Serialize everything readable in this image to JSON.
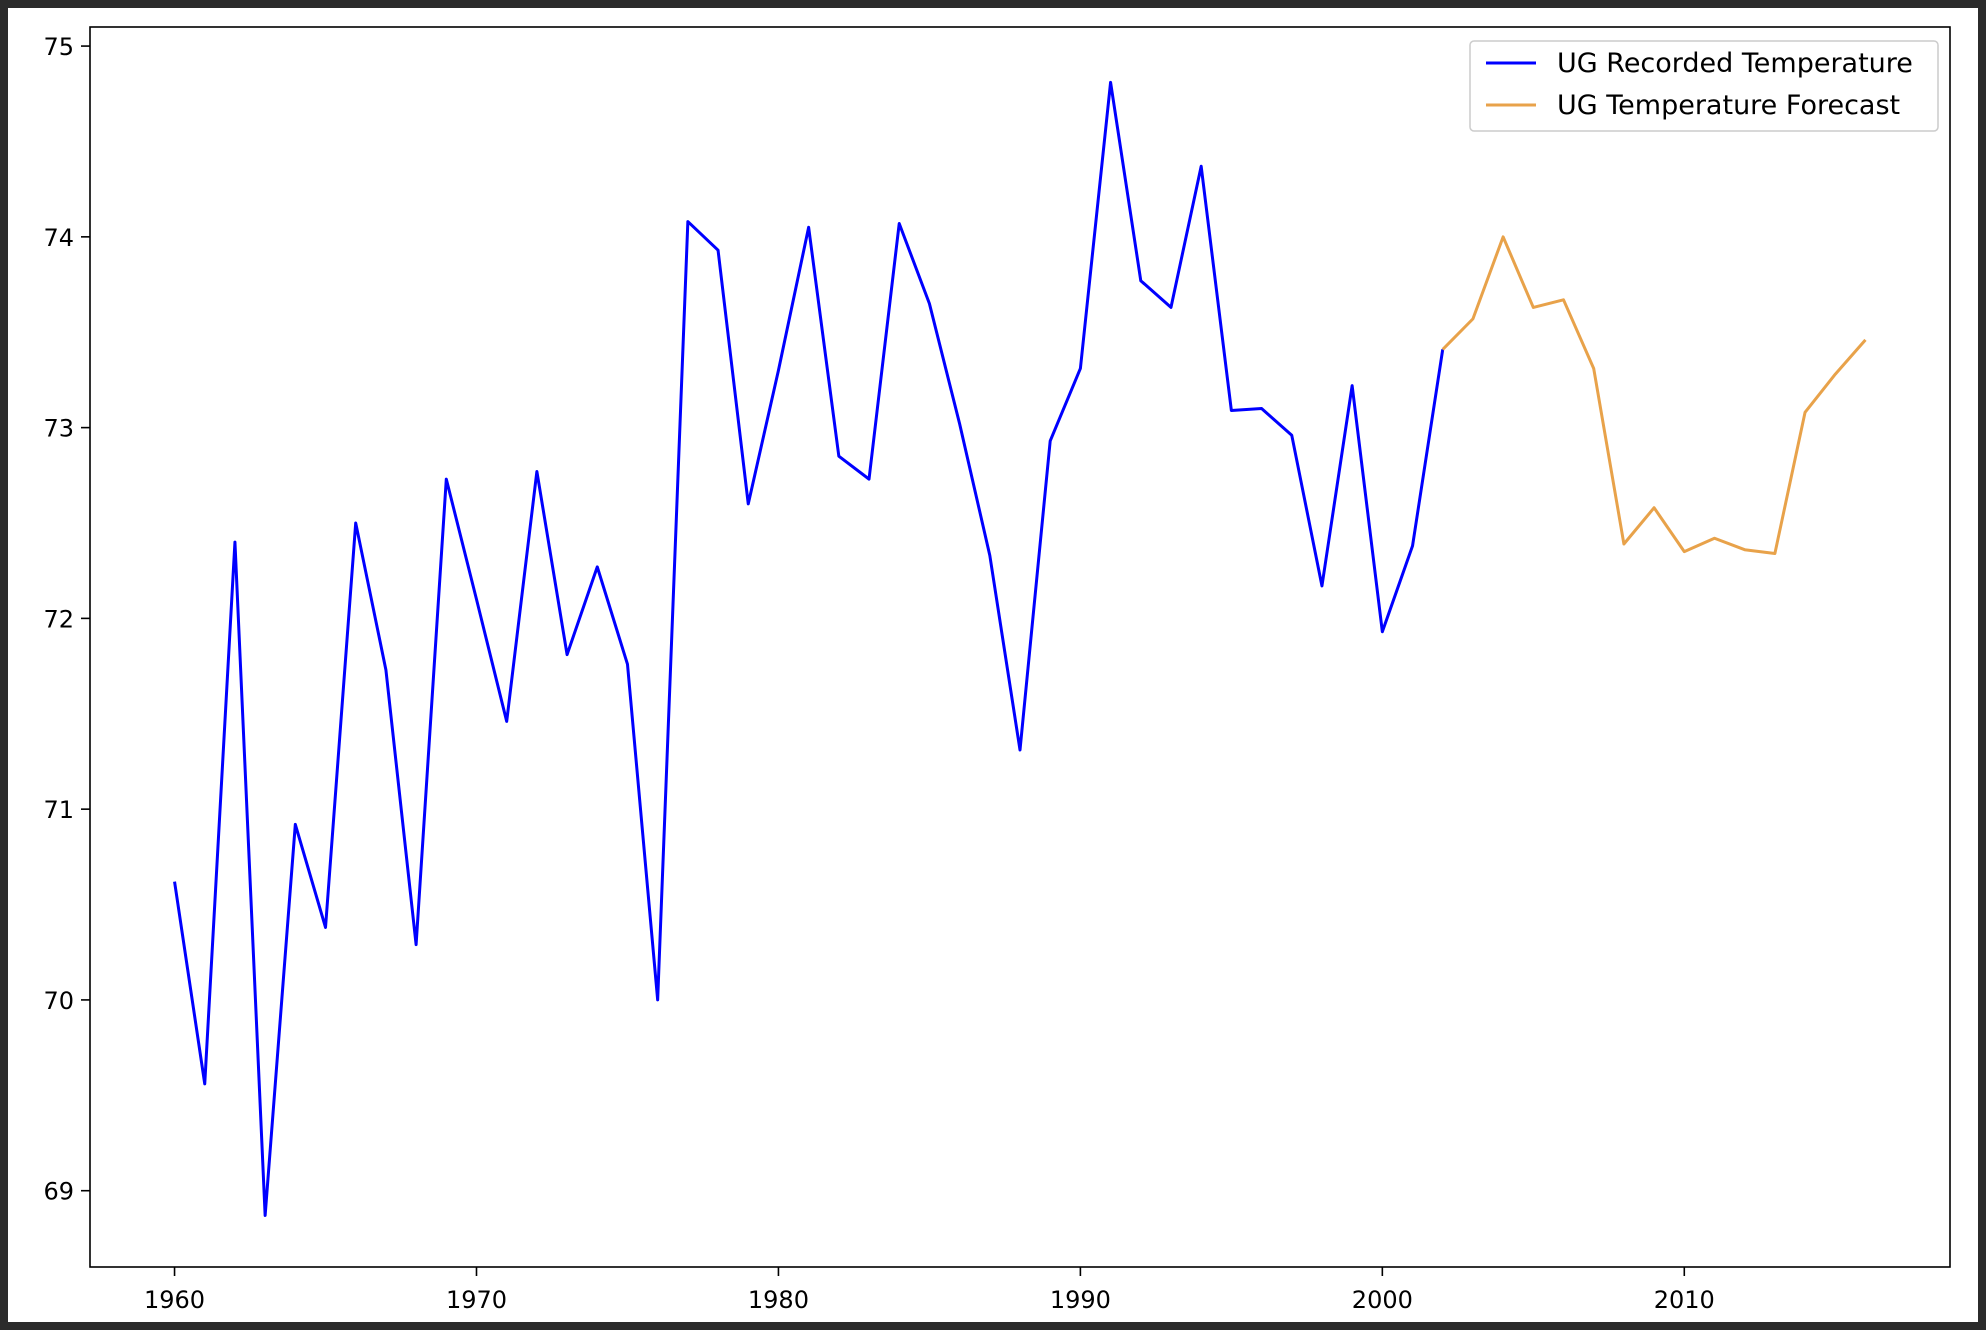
{
  "chart_data": {
    "type": "line",
    "title": "",
    "xlabel": "",
    "ylabel": "",
    "xlim": [
      1957.2,
      2018.8
    ],
    "ylim": [
      68.6,
      75.1
    ],
    "xticks": [
      1960,
      1970,
      1980,
      1990,
      2000,
      2010
    ],
    "yticks": [
      69,
      70,
      71,
      72,
      73,
      74,
      75
    ],
    "grid": false,
    "legend_position": "top-right",
    "series": [
      {
        "name": "UG Recorded Temperature",
        "color": "#0000ff",
        "x": [
          1960,
          1961,
          1962,
          1963,
          1964,
          1965,
          1966,
          1967,
          1968,
          1969,
          1970,
          1971,
          1972,
          1973,
          1974,
          1975,
          1976,
          1977,
          1978,
          1979,
          1980,
          1981,
          1982,
          1983,
          1984,
          1985,
          1986,
          1987,
          1988,
          1989,
          1990,
          1991,
          1992,
          1993,
          1994,
          1995,
          1996,
          1997,
          1998,
          1999,
          2000,
          2001,
          2002
        ],
        "values": [
          70.62,
          69.56,
          72.4,
          68.87,
          70.92,
          70.38,
          72.5,
          71.73,
          70.29,
          72.73,
          72.1,
          71.46,
          72.77,
          71.81,
          72.27,
          71.76,
          70.0,
          74.08,
          73.93,
          72.6,
          73.3,
          74.05,
          72.85,
          72.73,
          74.07,
          73.65,
          73.02,
          72.33,
          71.31,
          72.93,
          73.31,
          74.81,
          73.77,
          73.63,
          74.37,
          73.09,
          73.1,
          72.96,
          72.17,
          73.22,
          71.93,
          72.38,
          73.41
        ]
      },
      {
        "name": "UG Temperature Forecast",
        "color": "#e8a24a",
        "x": [
          2002,
          2003,
          2004,
          2005,
          2006,
          2007,
          2008,
          2009,
          2010,
          2011,
          2012,
          2013,
          2014,
          2015,
          2016
        ],
        "values": [
          73.41,
          73.57,
          74.0,
          73.63,
          73.67,
          73.31,
          72.39,
          72.58,
          72.35,
          72.42,
          72.36,
          72.34,
          73.08,
          73.28,
          73.46
        ]
      }
    ]
  }
}
